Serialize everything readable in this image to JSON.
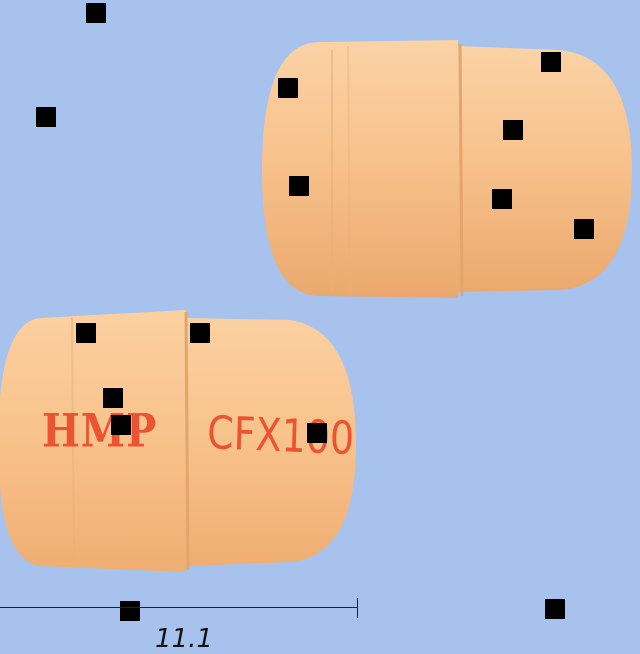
{
  "colors": {
    "background": "#a7c2ec",
    "capsule": "#f7c08a",
    "capsule_shadow": "#e2a56c",
    "imprint": "#ea4a2a",
    "marker": "#000000"
  },
  "capsule_bottom": {
    "imprint_left": "HMP",
    "imprint_right": "CFX100"
  },
  "scale": {
    "label": "11.1"
  }
}
